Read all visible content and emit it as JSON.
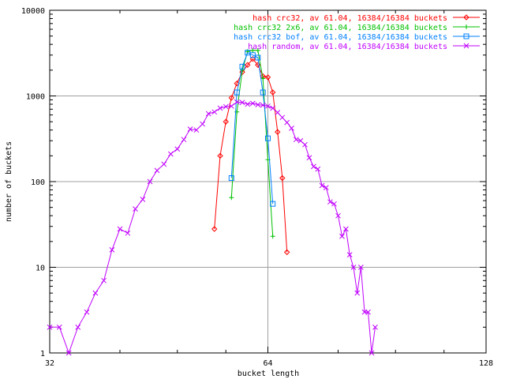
{
  "chart_data": {
    "type": "line",
    "title": "",
    "xlabel": "bucket length",
    "ylabel": "number of buckets",
    "x_scale": "log2",
    "y_scale": "log10",
    "xlim": [
      32,
      128
    ],
    "ylim": [
      1,
      10000
    ],
    "x_ticks": [
      32,
      64,
      128
    ],
    "y_ticks": [
      1,
      10,
      100,
      1000,
      10000
    ],
    "grid": true,
    "legend_position": "top-right",
    "series": [
      {
        "name": "hash crc32, av 61.04, 16384/16384 buckets",
        "color": "#ff0000",
        "marker": "diamond",
        "points": [
          [
            54,
            28
          ],
          [
            55,
            200
          ],
          [
            56,
            500
          ],
          [
            57,
            950
          ],
          [
            58,
            1400
          ],
          [
            59,
            1900
          ],
          [
            60,
            2300
          ],
          [
            61,
            2700
          ],
          [
            62,
            2300
          ],
          [
            63,
            1700
          ],
          [
            64,
            1650
          ],
          [
            65,
            1100
          ],
          [
            66,
            380
          ],
          [
            67,
            110
          ],
          [
            68,
            15
          ]
        ]
      },
      {
        "name": "hash crc32 2x6, av 61.04, 16384/16384 buckets",
        "color": "#00c000",
        "marker": "plus",
        "points": [
          [
            57,
            65
          ],
          [
            58,
            650
          ],
          [
            59,
            2000
          ],
          [
            60,
            3300
          ],
          [
            61,
            3400
          ],
          [
            62,
            3400
          ],
          [
            63,
            1600
          ],
          [
            64,
            180
          ],
          [
            65,
            23
          ]
        ]
      },
      {
        "name": "hash crc32 bof, av 61.04, 16384/16384 buckets",
        "color": "#0080ff",
        "marker": "square",
        "points": [
          [
            57,
            110
          ],
          [
            58,
            1100
          ],
          [
            59,
            2200
          ],
          [
            60,
            3200
          ],
          [
            61,
            3000
          ],
          [
            62,
            2800
          ],
          [
            63,
            1100
          ],
          [
            64,
            320
          ],
          [
            65,
            55
          ]
        ]
      },
      {
        "name": "hash random, av 61.04, 16384/16384 buckets",
        "color": "#c000ff",
        "marker": "x",
        "points": [
          [
            32,
            2
          ],
          [
            33,
            2
          ],
          [
            34,
            1
          ],
          [
            35,
            2
          ],
          [
            36,
            3
          ],
          [
            37,
            5
          ],
          [
            38,
            7
          ],
          [
            39,
            16
          ],
          [
            40,
            28
          ],
          [
            41,
            25
          ],
          [
            42,
            48
          ],
          [
            43,
            62
          ],
          [
            44,
            100
          ],
          [
            45,
            135
          ],
          [
            46,
            160
          ],
          [
            47,
            210
          ],
          [
            48,
            240
          ],
          [
            49,
            310
          ],
          [
            50,
            410
          ],
          [
            51,
            400
          ],
          [
            52,
            470
          ],
          [
            53,
            620
          ],
          [
            54,
            650
          ],
          [
            55,
            720
          ],
          [
            56,
            750
          ],
          [
            57,
            760
          ],
          [
            58,
            850
          ],
          [
            59,
            840
          ],
          [
            60,
            800
          ],
          [
            61,
            820
          ],
          [
            62,
            790
          ],
          [
            63,
            780
          ],
          [
            64,
            760
          ],
          [
            65,
            720
          ],
          [
            66,
            640
          ],
          [
            67,
            560
          ],
          [
            68,
            490
          ],
          [
            69,
            420
          ],
          [
            70,
            310
          ],
          [
            71,
            300
          ],
          [
            72,
            270
          ],
          [
            73,
            190
          ],
          [
            74,
            150
          ],
          [
            75,
            140
          ],
          [
            76,
            90
          ],
          [
            77,
            85
          ],
          [
            78,
            58
          ],
          [
            79,
            55
          ],
          [
            80,
            40
          ],
          [
            81,
            23
          ],
          [
            82,
            28
          ],
          [
            83,
            14
          ],
          [
            84,
            10
          ],
          [
            85,
            5
          ],
          [
            86,
            10
          ],
          [
            87,
            3
          ],
          [
            88,
            3
          ],
          [
            89,
            1
          ],
          [
            90,
            2
          ]
        ]
      }
    ]
  }
}
